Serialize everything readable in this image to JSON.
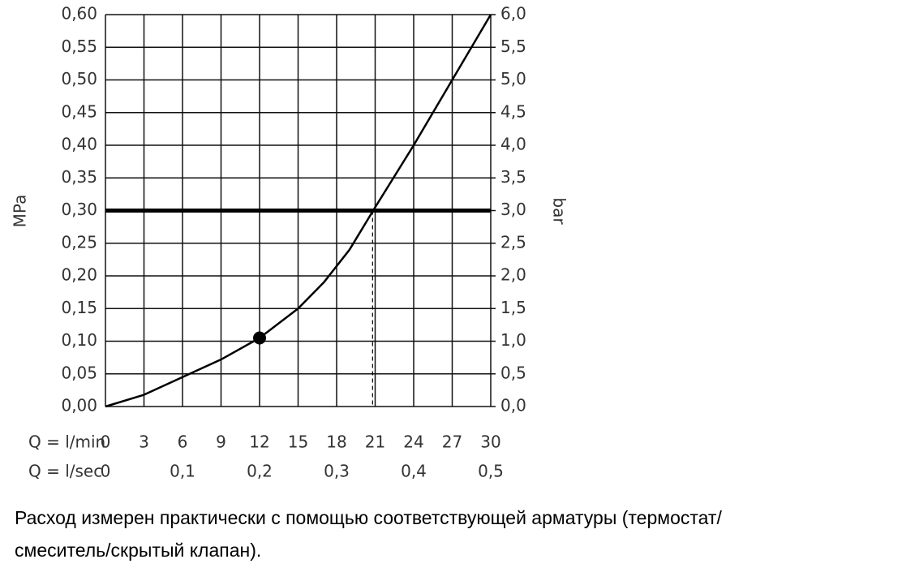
{
  "chart_data": {
    "type": "line",
    "x_label": "Q = l/min",
    "x2_label": "Q = l/sec",
    "y_label": "MPa",
    "y2_label": "bar",
    "series": [
      {
        "color": "#000000",
        "x": [
          0,
          3,
          6,
          9,
          12,
          15,
          17,
          19,
          21,
          24,
          27,
          30
        ],
        "values": [
          0,
          0.018,
          0.045,
          0.072,
          0.105,
          0.15,
          0.19,
          0.24,
          0.305,
          0.4,
          0.5,
          0.6
        ]
      }
    ],
    "highlight_point": {
      "x": 12,
      "y": 0.105
    },
    "reference_y": 0.3,
    "reference_x": 20.8,
    "xlim": [
      0,
      30
    ],
    "xticks": [
      0,
      3,
      6,
      9,
      12,
      15,
      18,
      21,
      24,
      27,
      30
    ],
    "x2lim": [
      0,
      0.5
    ],
    "x2ticks": [
      0,
      {
        "value": 0.1,
        "label": "0,1"
      },
      {
        "value": 0.2,
        "label": "0,2"
      },
      {
        "value": 0.3,
        "label": "0,3"
      },
      {
        "value": 0.4,
        "label": "0,4"
      },
      {
        "value": 0.5,
        "label": "0,5"
      }
    ],
    "ylim": [
      0,
      0.6
    ],
    "yticks": [
      {
        "value": 0,
        "label": "0,00"
      },
      {
        "value": 0.05,
        "label": "0,05"
      },
      {
        "value": 0.1,
        "label": "0,10"
      },
      {
        "value": 0.15,
        "label": "0,15"
      },
      {
        "value": 0.2,
        "label": "0,20"
      },
      {
        "value": 0.25,
        "label": "0,25"
      },
      {
        "value": 0.3,
        "label": "0,30"
      },
      {
        "value": 0.35,
        "label": "0,35"
      },
      {
        "value": 0.4,
        "label": "0,40"
      },
      {
        "value": 0.45,
        "label": "0,45"
      },
      {
        "value": 0.5,
        "label": "0,50"
      },
      {
        "value": 0.55,
        "label": "0,55"
      },
      {
        "value": 0.6,
        "label": "0,60"
      }
    ],
    "y2lim": [
      0,
      6
    ],
    "y2ticks": [
      {
        "value": 0,
        "label": "0,0"
      },
      {
        "value": 0.5,
        "label": "0,5"
      },
      {
        "value": 1,
        "label": "1,0"
      },
      {
        "value": 1.5,
        "label": "1,5"
      },
      {
        "value": 2,
        "label": "2,0"
      },
      {
        "value": 2.5,
        "label": "2,5"
      },
      {
        "value": 3,
        "label": "3,0"
      },
      {
        "value": 3.5,
        "label": "3,5"
      },
      {
        "value": 4,
        "label": "4,0"
      },
      {
        "value": 4.5,
        "label": "4,5"
      },
      {
        "value": 5,
        "label": "5,0"
      },
      {
        "value": 5.5,
        "label": "5,5"
      },
      {
        "value": 6,
        "label": "6,0"
      }
    ],
    "grid": true,
    "caption": [
      "Расход измерен практически с помощью соответствующей арматуры (термостат/",
      "смеситель/скрытый клапан)."
    ]
  }
}
